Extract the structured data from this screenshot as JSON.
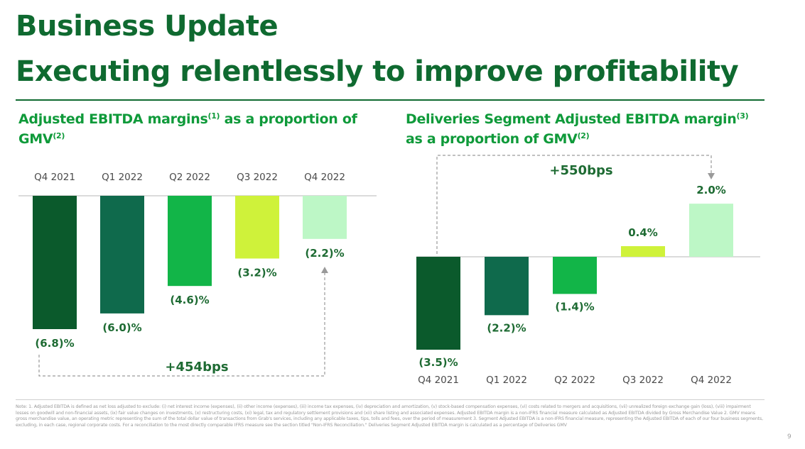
{
  "header": {
    "title": "Business Update",
    "subtitle": "Executing relentlessly to improve profitability"
  },
  "colors": {
    "q4_2021": "#0b5a2c",
    "q1_2022": "#0f6a4c",
    "q2_2022": "#12b548",
    "q3_2022": "#cff23a",
    "q4_2022": "#bdf7c6",
    "text_green": "#1e6b33",
    "heading_green": "#0f9a3a"
  },
  "left_chart": {
    "heading": "Adjusted EBITDA margins",
    "heading_sup1": "(1)",
    "heading_mid": " as a proportion of GMV",
    "heading_sup2": "(2)",
    "annotation": "+454bps"
  },
  "right_chart": {
    "heading": "Deliveries Segment Adjusted EBITDA margin",
    "heading_sup1": "(3)",
    "heading_mid": " as a proportion of GMV",
    "heading_sup2": "(2)",
    "annotation": "+550bps"
  },
  "chart_data": [
    {
      "type": "bar",
      "title": "Adjusted EBITDA margins as a proportion of GMV",
      "categories": [
        "Q4 2021",
        "Q1 2022",
        "Q2 2022",
        "Q3 2022",
        "Q4 2022"
      ],
      "values": [
        -6.8,
        -6.0,
        -4.6,
        -3.2,
        -2.2
      ],
      "labels": [
        "(6.8)%",
        "(6.0)%",
        "(4.6)%",
        "(3.2)%",
        "(2.2)%"
      ],
      "ylim": [
        -7.0,
        0
      ],
      "xlabel": "",
      "ylabel": "",
      "category_axis": "top",
      "grid": false,
      "legend": "none",
      "annotation": "+454bps"
    },
    {
      "type": "bar",
      "title": "Deliveries Segment Adjusted EBITDA margin as a proportion of GMV",
      "categories": [
        "Q4 2021",
        "Q1 2022",
        "Q2 2022",
        "Q3 2022",
        "Q4 2022"
      ],
      "values": [
        -3.5,
        -2.2,
        -1.4,
        0.4,
        2.0
      ],
      "labels": [
        "(3.5)%",
        "(2.2)%",
        "(1.4)%",
        "0.4%",
        "2.0%"
      ],
      "ylim": [
        -3.5,
        2.0
      ],
      "xlabel": "",
      "ylabel": "",
      "category_axis": "bottom",
      "grid": false,
      "legend": "none",
      "annotation": "+550bps"
    }
  ],
  "footnote": "Note: 1. Adjusted EBITDA is defined as net loss adjusted to exclude: (i) net interest income (expenses), (ii) other income (expenses), (iii) income tax expenses, (iv) depreciation and amortization, (v) stock-based compensation expenses, (vi) costs related to mergers and acquisitions, (vii) unrealized foreign exchange gain (loss), (viii) impairment losses on goodwill and non-financial assets, (ix) fair value changes on investments, (x) restructuring costs, (xi) legal, tax and regulatory settlement provisions and (xii) share listing and associated expenses. Adjusted EBITDA margin is a non-IFRS financial measure calculated as Adjusted EBITDA divided by Gross Merchandise Value 2. GMV means gross merchandise value, an operating metric representing the sum of the total dollar value of transactions from Grab's services, including any applicable taxes, tips, tolls and fees, over the period of measurement 3. Segment Adjusted EBITDA is a non-IFRS financial measure, representing the Adjusted EBITDA of each of our four business segments, excluding, in each case, regional corporate costs. For a reconciliation to the most directly comparable IFRS measure see the section titled \"Non-IFRS Reconciliation.\" Deliveries Segment Adjusted EBITDA margin is calculated as a percentage of Deliveries GMV",
  "page_number": "9"
}
